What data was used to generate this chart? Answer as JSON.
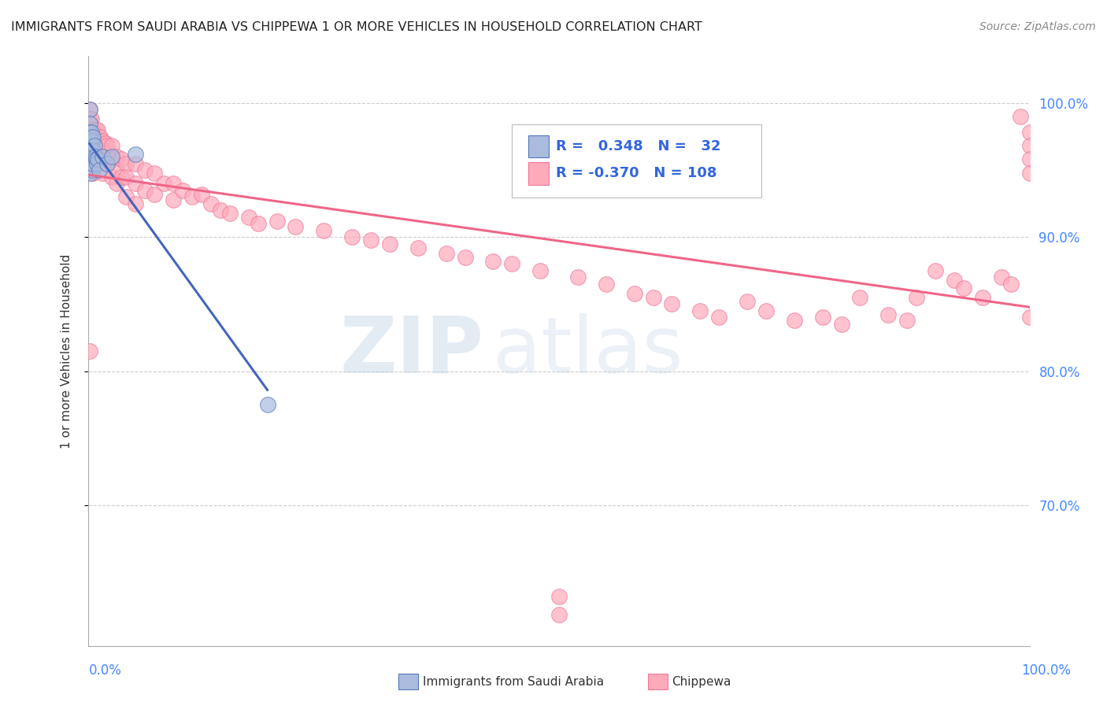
{
  "title": "IMMIGRANTS FROM SAUDI ARABIA VS CHIPPEWA 1 OR MORE VEHICLES IN HOUSEHOLD CORRELATION CHART",
  "source": "Source: ZipAtlas.com",
  "ylabel": "1 or more Vehicles in Household",
  "blue_color": "#AABBDD",
  "pink_color": "#FFAABB",
  "blue_edge_color": "#5577BB",
  "pink_edge_color": "#EE7799",
  "blue_line_color": "#4466BB",
  "pink_line_color": "#EE6688",
  "watermark_color": "#C8D8E8",
  "background_color": "#FFFFFF",
  "grid_color": "#CCCCCC",
  "xlim": [
    0.0,
    1.0
  ],
  "ylim": [
    0.595,
    1.035
  ],
  "yticks": [
    0.7,
    0.8,
    0.9,
    1.0
  ],
  "ytick_labels": [
    "70.0%",
    "80.0%",
    "90.0%",
    "100.0%"
  ],
  "saudi_x": [
    0.001,
    0.001,
    0.001,
    0.001,
    0.001,
    0.001,
    0.002,
    0.002,
    0.002,
    0.002,
    0.002,
    0.003,
    0.003,
    0.003,
    0.003,
    0.004,
    0.004,
    0.004,
    0.005,
    0.005,
    0.005,
    0.006,
    0.007,
    0.008,
    0.009,
    0.01,
    0.011,
    0.015,
    0.02,
    0.025,
    0.05,
    0.19
  ],
  "saudi_y": [
    0.995,
    0.985,
    0.978,
    0.972,
    0.968,
    0.962,
    0.975,
    0.968,
    0.962,
    0.955,
    0.948,
    0.978,
    0.968,
    0.96,
    0.952,
    0.972,
    0.962,
    0.95,
    0.975,
    0.965,
    0.955,
    0.968,
    0.96,
    0.958,
    0.955,
    0.958,
    0.95,
    0.96,
    0.955,
    0.96,
    0.962,
    0.775
  ],
  "chippewa_x": [
    0.001,
    0.001,
    0.001,
    0.001,
    0.001,
    0.001,
    0.003,
    0.003,
    0.003,
    0.005,
    0.005,
    0.005,
    0.005,
    0.008,
    0.008,
    0.008,
    0.01,
    0.01,
    0.01,
    0.01,
    0.012,
    0.012,
    0.012,
    0.015,
    0.015,
    0.015,
    0.015,
    0.018,
    0.018,
    0.02,
    0.02,
    0.025,
    0.025,
    0.025,
    0.03,
    0.03,
    0.03,
    0.035,
    0.035,
    0.04,
    0.04,
    0.04,
    0.05,
    0.05,
    0.05,
    0.06,
    0.06,
    0.07,
    0.07,
    0.08,
    0.09,
    0.09,
    0.1,
    0.11,
    0.12,
    0.13,
    0.14,
    0.15,
    0.17,
    0.18,
    0.2,
    0.22,
    0.25,
    0.28,
    0.3,
    0.32,
    0.35,
    0.38,
    0.4,
    0.43,
    0.45,
    0.48,
    0.5,
    0.5,
    0.52,
    0.55,
    0.58,
    0.6,
    0.62,
    0.65,
    0.67,
    0.7,
    0.72,
    0.75,
    0.78,
    0.8,
    0.82,
    0.85,
    0.87,
    0.88,
    0.9,
    0.92,
    0.93,
    0.95,
    0.97,
    0.98,
    0.99,
    1.0,
    1.0,
    1.0,
    1.0,
    1.0
  ],
  "chippewa_y": [
    0.995,
    0.988,
    0.98,
    0.97,
    0.962,
    0.815,
    0.988,
    0.975,
    0.96,
    0.98,
    0.972,
    0.96,
    0.948,
    0.98,
    0.97,
    0.958,
    0.98,
    0.972,
    0.965,
    0.955,
    0.975,
    0.968,
    0.958,
    0.972,
    0.965,
    0.958,
    0.948,
    0.97,
    0.96,
    0.968,
    0.955,
    0.968,
    0.958,
    0.945,
    0.96,
    0.95,
    0.94,
    0.958,
    0.945,
    0.955,
    0.945,
    0.93,
    0.955,
    0.94,
    0.925,
    0.95,
    0.935,
    0.948,
    0.932,
    0.94,
    0.94,
    0.928,
    0.935,
    0.93,
    0.932,
    0.925,
    0.92,
    0.918,
    0.915,
    0.91,
    0.912,
    0.908,
    0.905,
    0.9,
    0.898,
    0.895,
    0.892,
    0.888,
    0.885,
    0.882,
    0.88,
    0.875,
    0.632,
    0.618,
    0.87,
    0.865,
    0.858,
    0.855,
    0.85,
    0.845,
    0.84,
    0.852,
    0.845,
    0.838,
    0.84,
    0.835,
    0.855,
    0.842,
    0.838,
    0.855,
    0.875,
    0.868,
    0.862,
    0.855,
    0.87,
    0.865,
    0.99,
    0.978,
    0.968,
    0.958,
    0.948,
    0.84
  ]
}
